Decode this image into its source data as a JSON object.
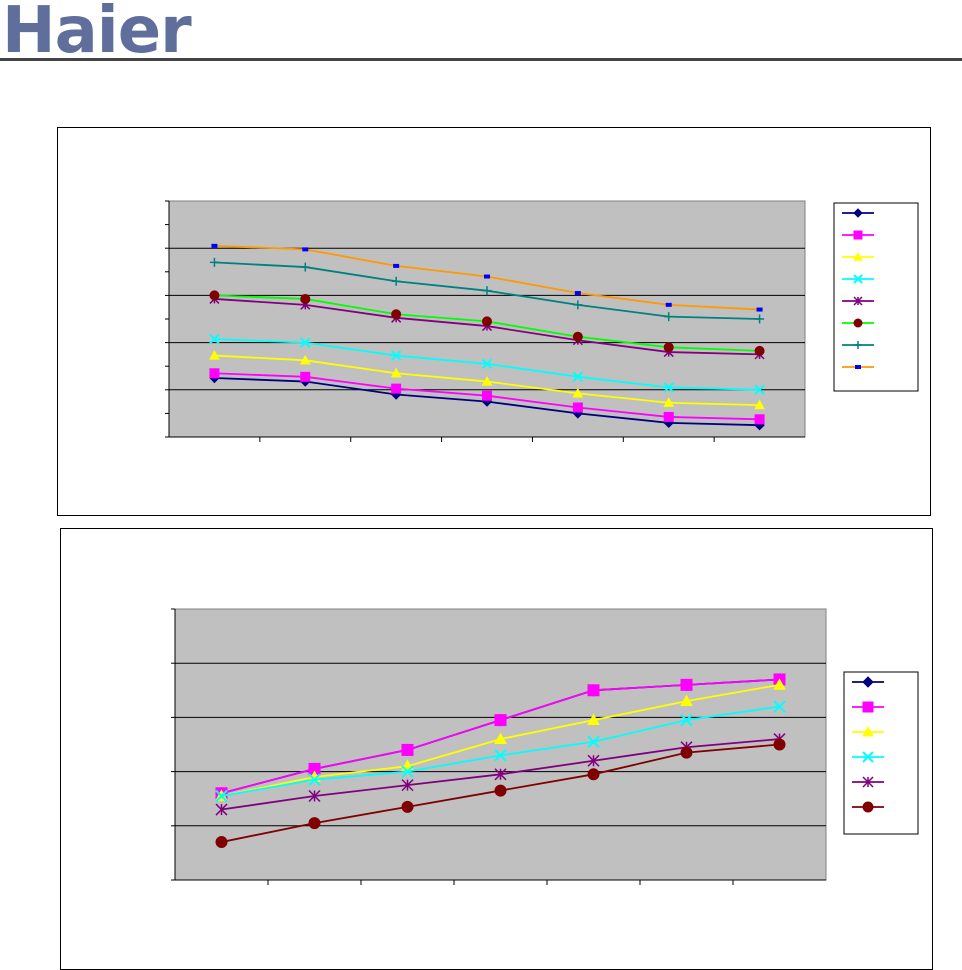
{
  "brand": {
    "logo_text": "Haier",
    "color": "#606e9c"
  },
  "chart_data": [
    {
      "type": "line",
      "plot_bg": "#c0c0c0",
      "grid": true,
      "legend": "right",
      "ylim": [
        0,
        10
      ],
      "x": [
        1,
        2,
        3,
        4,
        5,
        6,
        7
      ],
      "series": [
        {
          "color": "#000080",
          "marker": "diamond",
          "values": [
            2.5,
            2.35,
            1.8,
            1.5,
            1.0,
            0.6,
            0.5
          ]
        },
        {
          "color": "#ff00ff",
          "marker": "square",
          "values": [
            2.7,
            2.55,
            2.05,
            1.75,
            1.25,
            0.85,
            0.75
          ]
        },
        {
          "color": "#ffff00",
          "marker": "triangle",
          "values": [
            3.45,
            3.25,
            2.7,
            2.35,
            1.85,
            1.45,
            1.35
          ]
        },
        {
          "color": "#00ffff",
          "marker": "x",
          "values": [
            4.15,
            4.0,
            3.45,
            3.1,
            2.55,
            2.1,
            2.0
          ]
        },
        {
          "color": "#800080",
          "marker": "star",
          "values": [
            5.85,
            5.6,
            5.05,
            4.7,
            4.1,
            3.6,
            3.5
          ]
        },
        {
          "color": "#00ff00",
          "line_color": "#00ff00",
          "marker": "circle",
          "marker_color": "#800000",
          "values": [
            6.0,
            5.85,
            5.2,
            4.9,
            4.25,
            3.8,
            3.65
          ]
        },
        {
          "color": "#008080",
          "marker": "plus",
          "values": [
            7.4,
            7.2,
            6.6,
            6.2,
            5.6,
            5.1,
            5.0
          ]
        },
        {
          "color": "#ff9900",
          "marker": "dash",
          "marker_color": "#0000ff",
          "values": [
            8.1,
            7.95,
            7.25,
            6.8,
            6.1,
            5.6,
            5.4
          ]
        }
      ]
    },
    {
      "type": "line",
      "plot_bg": "#c0c0c0",
      "grid": true,
      "legend": "right",
      "ylim": [
        0,
        5
      ],
      "x": [
        1,
        2,
        3,
        4,
        5,
        6,
        7
      ],
      "series": [
        {
          "color": "#000080",
          "marker": "diamond",
          "values": [
            1.6,
            2.05,
            2.4,
            2.95,
            3.5,
            3.6,
            3.7
          ]
        },
        {
          "color": "#ff00ff",
          "marker": "square",
          "values": [
            1.6,
            2.05,
            2.4,
            2.95,
            3.5,
            3.6,
            3.7
          ]
        },
        {
          "color": "#ffff00",
          "marker": "triangle",
          "values": [
            1.55,
            1.9,
            2.1,
            2.6,
            2.95,
            3.3,
            3.6
          ]
        },
        {
          "color": "#00ffff",
          "marker": "x",
          "values": [
            1.55,
            1.85,
            2.0,
            2.3,
            2.55,
            2.95,
            3.2
          ]
        },
        {
          "color": "#800080",
          "marker": "star",
          "values": [
            1.3,
            1.55,
            1.75,
            1.95,
            2.2,
            2.45,
            2.6
          ]
        },
        {
          "color": "#800000",
          "marker": "circle",
          "values": [
            0.7,
            1.05,
            1.35,
            1.65,
            1.95,
            2.35,
            2.5
          ]
        }
      ]
    }
  ]
}
